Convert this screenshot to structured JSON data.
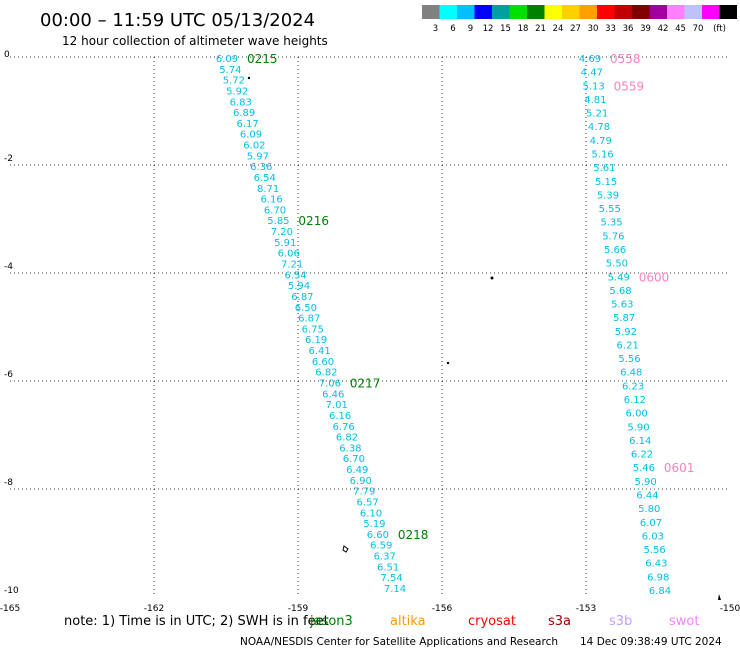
{
  "header": {
    "title": "00:00 – 11:59 UTC 05/13/2024",
    "subtitle": "12 hour collection of altimeter wave heights"
  },
  "colorbar": {
    "colors": [
      "#808080",
      "#00ffff",
      "#00c0ff",
      "#0000ff",
      "#00a0a0",
      "#00e000",
      "#008000",
      "#ffff00",
      "#ffd000",
      "#ffa000",
      "#ff0000",
      "#c00000",
      "#800000",
      "#a000a0",
      "#ff80ff",
      "#c0c0ff",
      "#ff00ff",
      "#000000"
    ],
    "labels": [
      "3",
      "6",
      "9",
      "12",
      "15",
      "18",
      "21",
      "24",
      "27",
      "30",
      "33",
      "36",
      "39",
      "42",
      "45",
      "70",
      "(ft)"
    ]
  },
  "axes": {
    "x_ticks": [
      "-165",
      "-162",
      "-159",
      "-156",
      "-153",
      "-150"
    ],
    "y_ticks": [
      "0",
      "-2",
      "-4",
      "-6",
      "-8",
      "-10"
    ]
  },
  "tracks": [
    {
      "name": "west-track",
      "color": "#00c0e0",
      "values": [
        "6.09",
        "5.74",
        "5.72",
        "5.92",
        "6.83",
        "6.89",
        "6.17",
        "6.09",
        "6.02",
        "5.97",
        "6.36",
        "6.54",
        "8.71",
        "6.16",
        "6.70",
        "5.85",
        "7.20",
        "5.91",
        "6.06",
        "7.21",
        "6.54",
        "5.94",
        "6.87",
        "6.50",
        "6.87",
        "6.75",
        "6.19",
        "6.41",
        "6.60",
        "6.82",
        "7.06",
        "6.46",
        "7.01",
        "6.16",
        "6.76",
        "6.82",
        "6.38",
        "6.70",
        "6.49",
        "6.90",
        "7.79",
        "6.57",
        "6.10",
        "5.19",
        "6.60",
        "6.59",
        "6.37",
        "6.51",
        "7.54",
        "7.14"
      ],
      "times": [
        {
          "label": "0215",
          "at": 0
        },
        {
          "label": "0216",
          "at": 15
        },
        {
          "label": "0217",
          "at": 30
        },
        {
          "label": "0218",
          "at": 44
        }
      ]
    },
    {
      "name": "east-track",
      "color": "#00c0e0",
      "values": [
        "4.69",
        "4.47",
        "5.13",
        "4.81",
        "5.21",
        "4.78",
        "4.79",
        "5.16",
        "5.61",
        "5.15",
        "5.39",
        "5.55",
        "5.35",
        "5.76",
        "5.66",
        "5.50",
        "5.49",
        "5.68",
        "5.63",
        "5.87",
        "5.92",
        "6.21",
        "5.56",
        "6.48",
        "6.23",
        "6.12",
        "6.00",
        "5.90",
        "6.14",
        "6.22",
        "5.46",
        "5.90",
        "6.44",
        "5.80",
        "6.07",
        "6.03",
        "5.56",
        "6.43",
        "6.98",
        "6.84"
      ],
      "times": [
        {
          "label": "0558",
          "at": 0
        },
        {
          "label": "0559",
          "at": 2
        },
        {
          "label": "0600",
          "at": 16
        },
        {
          "label": "0601",
          "at": 30
        }
      ]
    }
  ],
  "time_color_west": "#008000",
  "time_color_east": "#ff80c0",
  "footer": {
    "note": "note:  1) Time is in UTC; 2) SWH is in feet",
    "satellites": [
      {
        "name": "jason3",
        "color": "#008000"
      },
      {
        "name": "altika",
        "color": "#ff9900"
      },
      {
        "name": "cryosat",
        "color": "#ff0000"
      },
      {
        "name": "s3a",
        "color": "#a00000"
      },
      {
        "name": "s3b",
        "color": "#c0a0ff"
      },
      {
        "name": "swot",
        "color": "#ff80ff"
      }
    ],
    "credit": "NOAA/NESDIS Center for Satellite Applications and Research",
    "generated": "14 Dec 09:38:49 UTC 2024"
  }
}
